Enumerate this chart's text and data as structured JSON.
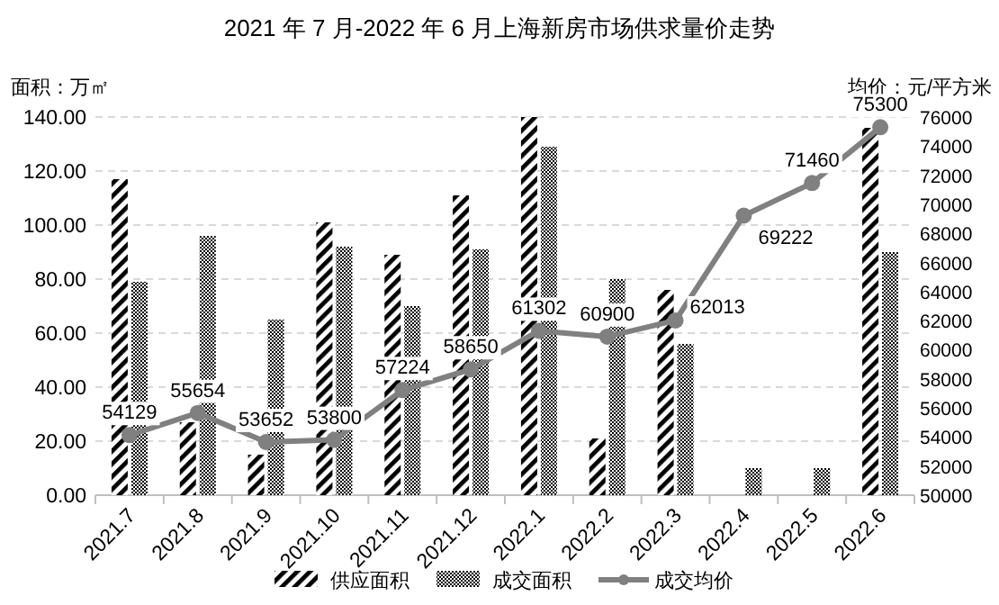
{
  "chart_data": {
    "type": "bar",
    "title": "2021 年 7 月-2022 年 6 月上海新房市场供求量价走势",
    "ylabel": "面积：万㎡",
    "y2label": "均价：元/平方米",
    "categories": [
      "2021.7",
      "2021.8",
      "2021.9",
      "2021.10",
      "2021.11",
      "2021.12",
      "2022.1",
      "2022.2",
      "2022.3",
      "2022.4",
      "2022.5",
      "2022.6"
    ],
    "ylim": [
      0,
      140
    ],
    "yticks": [
      {
        "value": 0,
        "label": "0.00"
      },
      {
        "value": 20,
        "label": "20.00"
      },
      {
        "value": 40,
        "label": "40.00"
      },
      {
        "value": 60,
        "label": "60.00"
      },
      {
        "value": 80,
        "label": "80.00"
      },
      {
        "value": 100,
        "label": "100.00"
      },
      {
        "value": 120,
        "label": "120.00"
      },
      {
        "value": 140,
        "label": "140.00"
      }
    ],
    "y2lim": [
      50000,
      76000
    ],
    "y2ticks": [
      50000,
      52000,
      54000,
      56000,
      58000,
      60000,
      62000,
      64000,
      66000,
      68000,
      70000,
      72000,
      74000,
      76000
    ],
    "grid": "y",
    "legend": "bottom",
    "series": [
      {
        "name": "供应面积",
        "color": "#000000",
        "values": [
          117,
          27,
          15,
          101,
          89,
          111,
          140,
          21,
          76,
          0,
          0,
          136
        ]
      },
      {
        "name": "成交面积",
        "color": "#000000",
        "values": [
          79,
          96,
          65,
          92,
          70,
          91,
          129,
          80,
          56,
          10,
          10,
          90
        ]
      },
      {
        "name": "成交均价",
        "type": "line",
        "axis": "y2",
        "color": "#808080",
        "marker": "circle",
        "values": [
          54129,
          55654,
          53652,
          53800,
          57224,
          58650,
          61302,
          60900,
          62013,
          69222,
          71460,
          75300
        ],
        "value_labels": [
          "54129",
          "55654",
          "53652",
          "53800",
          "57224",
          "58650",
          "61302",
          "60900",
          "62013",
          "69222",
          "71460",
          "75300"
        ]
      }
    ]
  }
}
